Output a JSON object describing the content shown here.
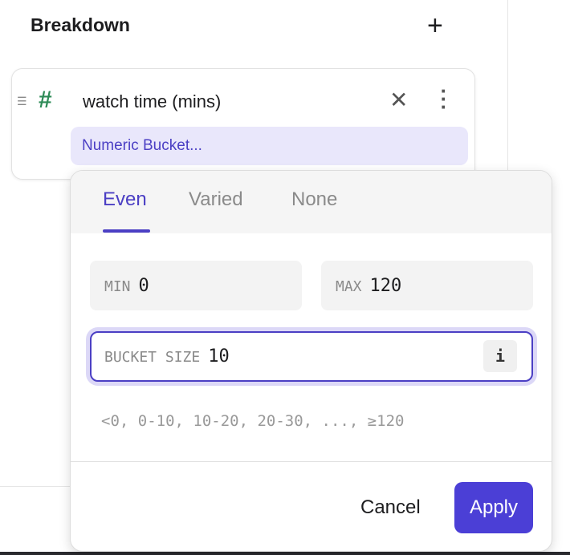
{
  "header": {
    "title": "Breakdown",
    "add_icon": "plus-icon"
  },
  "card": {
    "field_name": "watch time (mins)",
    "type_icon": "hash-icon",
    "bucket_chip": "Numeric Bucket..."
  },
  "popover": {
    "tabs": [
      {
        "label": "Even",
        "active": true
      },
      {
        "label": "Varied"
      },
      {
        "label": "None"
      }
    ],
    "min": {
      "label": "MIN",
      "value": "0"
    },
    "max": {
      "label": "MAX",
      "value": "120"
    },
    "bucket_size": {
      "label": "BUCKET SIZE",
      "value": "10",
      "info": "i"
    },
    "preview": "<0, 0-10, 10-20, 20-30, ..., ≥120",
    "cancel_label": "Cancel",
    "apply_label": "Apply"
  },
  "colors": {
    "accent": "#4b3fd6",
    "chip_bg": "#e9e7fb",
    "hash": "#2e8b57"
  }
}
